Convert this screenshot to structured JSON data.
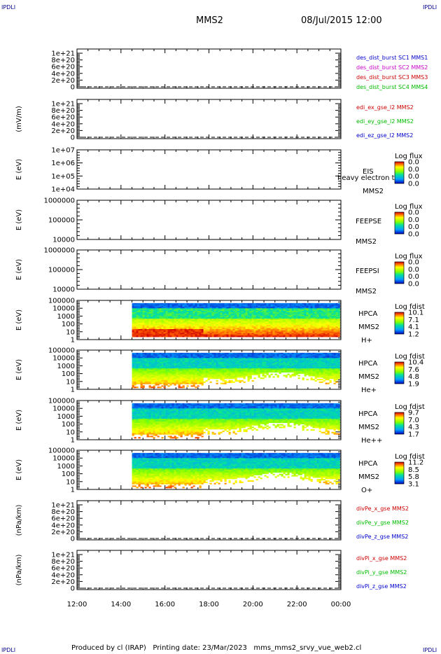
{
  "corner_label": "IPDLI",
  "header": {
    "title": "MMS2",
    "date": "08/Jul/2015 12:00"
  },
  "footer": {
    "produced_by": "Produced by cl (IRAP)",
    "printing_date": "Printing date: 23/Mar/2023",
    "script": "mms_mms2_srvy_vue_web2.cl"
  },
  "chart_data": {
    "type": "heatmap",
    "x_ticks": [
      "12:00",
      "14:00",
      "16:00",
      "18:00",
      "20:00",
      "22:00",
      "00:00"
    ],
    "panels": [
      {
        "id": "des",
        "ylabel": "",
        "yticks": [
          "1e+21",
          "8e+20",
          "6e+20",
          "4e+20",
          "2e+20",
          "0"
        ],
        "kind": "line",
        "legend": [
          {
            "text": "des_dist_burst SC1 MMS1",
            "color": "#0000cc"
          },
          {
            "text": "des_dist_burst SC2 MMS2",
            "color": "#cc00cc"
          },
          {
            "text": "des_dist_burst SC3 MMS3",
            "color": "#cc0000"
          },
          {
            "text": "des_dist_burst SC4 MMS4",
            "color": "#00bb00"
          }
        ]
      },
      {
        "id": "edi",
        "ylabel": "(mV/m)",
        "yticks": [
          "1e+21",
          "8e+20",
          "6e+20",
          "4e+20",
          "2e+20",
          "0"
        ],
        "kind": "line",
        "legend": [
          {
            "text": "edi_ex_gse_l2 MMS2",
            "color": "#cc0000"
          },
          {
            "text": "edi_ey_gse_l2 MMS2",
            "color": "#00bb00"
          },
          {
            "text": "edi_ez_gse_l2 MMS2",
            "color": "#0000cc"
          }
        ]
      },
      {
        "id": "eis",
        "ylabel": "E (eV)",
        "yticks": [
          "1e+07",
          "1e+06",
          "1e+05",
          "1e+04"
        ],
        "kind": "spec",
        "labels": [
          "EIS",
          "heavy electron to",
          "MMS2"
        ],
        "cb_title": "Log flux",
        "cb_vals": [
          "0.0",
          "0.0",
          "0.0",
          "0.0"
        ]
      },
      {
        "id": "feepse",
        "ylabel": "E (eV)",
        "yticks": [
          "1000000",
          "100000",
          "10000"
        ],
        "kind": "spec",
        "labels": [
          "FEEPSE",
          "MMS2"
        ],
        "cb_title": "Log flux",
        "cb_vals": [
          "0.0",
          "0.0",
          "0.0",
          "0.0"
        ]
      },
      {
        "id": "feepsi",
        "ylabel": "E (eV)",
        "yticks": [
          "1000000",
          "100000",
          "10000"
        ],
        "kind": "spec",
        "labels": [
          "FEEPSI",
          "MMS2"
        ],
        "cb_title": "Log flux",
        "cb_vals": [
          "0.0",
          "0.0",
          "0.0",
          "0.0"
        ]
      },
      {
        "id": "hpca_h",
        "ylabel": "E (eV)",
        "yticks": [
          "100000",
          "10000",
          "1000",
          "100",
          "10",
          "1"
        ],
        "kind": "spec",
        "labels": [
          "HPCA",
          "MMS2",
          "H+"
        ],
        "cb_title": "Log fdist",
        "cb_vals": [
          "10.1",
          "7.1",
          "4.1",
          "1.2"
        ]
      },
      {
        "id": "hpca_he",
        "ylabel": "E (eV)",
        "yticks": [
          "100000",
          "10000",
          "1000",
          "100",
          "10",
          "1"
        ],
        "kind": "spec",
        "labels": [
          "HPCA",
          "MMS2",
          "He+"
        ],
        "cb_title": "Log fdist",
        "cb_vals": [
          "10.4",
          "7.6",
          "4.8",
          "1.9"
        ]
      },
      {
        "id": "hpca_hepp",
        "ylabel": "E (eV)",
        "yticks": [
          "100000",
          "10000",
          "1000",
          "100",
          "10",
          "1"
        ],
        "kind": "spec",
        "labels": [
          "HPCA",
          "MMS2",
          "He++"
        ],
        "cb_title": "Log fdist",
        "cb_vals": [
          "9.7",
          "7.0",
          "4.3",
          "1.7"
        ]
      },
      {
        "id": "hpca_o",
        "ylabel": "E (eV)",
        "yticks": [
          "100000",
          "10000",
          "1000",
          "100",
          "10",
          "1"
        ],
        "kind": "spec",
        "labels": [
          "HPCA",
          "MMS2",
          "O+"
        ],
        "cb_title": "Log fdist",
        "cb_vals": [
          "11.2",
          "8.5",
          "5.8",
          "3.1"
        ]
      },
      {
        "id": "divpe",
        "ylabel": "(nPa/km)",
        "yticks": [
          "1e+21",
          "8e+20",
          "6e+20",
          "4e+20",
          "2e+20",
          "0"
        ],
        "kind": "line",
        "legend": [
          {
            "text": "divPe_x_gse MMS2",
            "color": "#cc0000"
          },
          {
            "text": "divPe_y_gse MMS2",
            "color": "#00bb00"
          },
          {
            "text": "divPe_z_gse MMS2",
            "color": "#0000cc"
          }
        ]
      },
      {
        "id": "divpi",
        "ylabel": "(nPa/km)",
        "yticks": [
          "1e+21",
          "8e+20",
          "6e+20",
          "4e+20",
          "2e+20",
          "0"
        ],
        "kind": "line",
        "legend": [
          {
            "text": "divPi_x_gse MMS2",
            "color": "#cc0000"
          },
          {
            "text": "divPi_y_gse MMS2",
            "color": "#00bb00"
          },
          {
            "text": "divPi_z_gse MMS2",
            "color": "#0000cc"
          }
        ]
      }
    ],
    "hpca_data_start_time": "14:30"
  }
}
